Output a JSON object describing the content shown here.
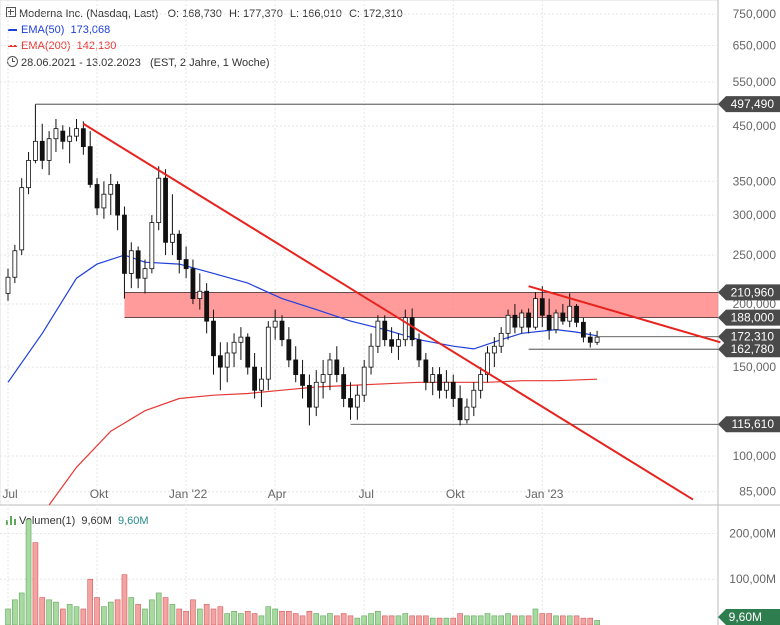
{
  "legend": {
    "instrument": "Moderna Inc. (Nasdaq, Last)",
    "ohlc": {
      "o_label": "O:",
      "o": "168,730",
      "h_label": "H:",
      "h": "177,370",
      "l_label": "L:",
      "l": "166,010",
      "c_label": "C:",
      "c": "172,310"
    },
    "ema50": {
      "label": "EMA(50)",
      "value": "173,068",
      "color": "#1f3fdb"
    },
    "ema200": {
      "label": "EMA(200)",
      "value": "142,130",
      "color": "#e53935"
    },
    "period": "28.06.2021 - 13.02.2023",
    "interval": "(EST, 2 Jahre, 1 Woche)",
    "clock_icon": "clock-icon"
  },
  "chart_data": [
    {
      "type": "candlestick",
      "yscale": "log",
      "ylim": [
        80,
        800
      ],
      "y_ticks": [
        "750,000",
        "650,000",
        "550,000",
        "450,000",
        "350,000",
        "300,000",
        "250,000",
        "200,000",
        "150,000",
        "100,000",
        "85,000"
      ],
      "y_tick_values": [
        750,
        650,
        550,
        450,
        350,
        300,
        250,
        200,
        150,
        100,
        85
      ],
      "x_ticks": [
        "Jul",
        "Okt",
        "Jan '22",
        "Apr",
        "Jul",
        "Okt",
        "Jan '23"
      ],
      "x_tick_index": [
        0,
        13,
        26,
        39,
        52,
        65,
        78
      ],
      "colors": {
        "up": "#ffffff",
        "down": "#111111",
        "ema50": "#1f3fdb",
        "ema200": "#e53935",
        "zone": "#ff8a8a",
        "trend": "#e8231e",
        "tag": "#4a4a4a"
      },
      "candles": [
        [
          210,
          235,
          203,
          226
        ],
        [
          226,
          262,
          220,
          255
        ],
        [
          256,
          355,
          250,
          340
        ],
        [
          340,
          400,
          330,
          385
        ],
        [
          385,
          497,
          380,
          420
        ],
        [
          420,
          455,
          370,
          385
        ],
        [
          385,
          440,
          360,
          425
        ],
        [
          425,
          465,
          400,
          445
        ],
        [
          440,
          452,
          405,
          420
        ],
        [
          420,
          448,
          380,
          430
        ],
        [
          430,
          465,
          420,
          445
        ],
        [
          445,
          460,
          395,
          410
        ],
        [
          410,
          440,
          340,
          345
        ],
        [
          345,
          355,
          300,
          310
        ],
        [
          310,
          350,
          295,
          330
        ],
        [
          330,
          362,
          300,
          345
        ],
        [
          345,
          350,
          280,
          300
        ],
        [
          300,
          312,
          205,
          230
        ],
        [
          230,
          265,
          215,
          255
        ],
        [
          255,
          260,
          215,
          225
        ],
        [
          225,
          245,
          210,
          235
        ],
        [
          235,
          300,
          230,
          290
        ],
        [
          290,
          375,
          280,
          355
        ],
        [
          355,
          370,
          250,
          265
        ],
        [
          265,
          330,
          250,
          275
        ],
        [
          275,
          280,
          230,
          245
        ],
        [
          245,
          260,
          225,
          235
        ],
        [
          235,
          245,
          200,
          205
        ],
        [
          205,
          230,
          195,
          212
        ],
        [
          212,
          220,
          175,
          185
        ],
        [
          185,
          195,
          145,
          158
        ],
        [
          158,
          168,
          135,
          150
        ],
        [
          150,
          168,
          140,
          160
        ],
        [
          160,
          175,
          150,
          168
        ],
        [
          168,
          180,
          155,
          172
        ],
        [
          172,
          175,
          145,
          150
        ],
        [
          150,
          160,
          130,
          135
        ],
        [
          135,
          150,
          125,
          142
        ],
        [
          142,
          185,
          135,
          180
        ],
        [
          180,
          195,
          170,
          185
        ],
        [
          185,
          190,
          165,
          170
        ],
        [
          170,
          180,
          150,
          155
        ],
        [
          155,
          165,
          140,
          145
        ],
        [
          145,
          155,
          130,
          138
        ],
        [
          138,
          145,
          115,
          125
        ],
        [
          125,
          148,
          120,
          140
        ],
        [
          140,
          155,
          130,
          145
        ],
        [
          145,
          160,
          135,
          155
        ],
        [
          155,
          165,
          140,
          145
        ],
        [
          145,
          150,
          125,
          130
        ],
        [
          130,
          140,
          118,
          125
        ],
        [
          125,
          138,
          118,
          132
        ],
        [
          132,
          155,
          128,
          150
        ],
        [
          150,
          175,
          145,
          165
        ],
        [
          165,
          190,
          160,
          185
        ],
        [
          185,
          190,
          165,
          170
        ],
        [
          170,
          180,
          160,
          165
        ],
        [
          165,
          175,
          155,
          170
        ],
        [
          170,
          195,
          165,
          188
        ],
        [
          188,
          196,
          165,
          170
        ],
        [
          170,
          175,
          150,
          155
        ],
        [
          155,
          160,
          135,
          140
        ],
        [
          140,
          150,
          132,
          145
        ],
        [
          145,
          150,
          130,
          135
        ],
        [
          135,
          148,
          130,
          140
        ],
        [
          140,
          145,
          125,
          130
        ],
        [
          130,
          138,
          115,
          118
        ],
        [
          118,
          130,
          116,
          125
        ],
        [
          125,
          140,
          120,
          135
        ],
        [
          135,
          150,
          130,
          145
        ],
        [
          145,
          165,
          140,
          160
        ],
        [
          160,
          172,
          150,
          165
        ],
        [
          165,
          180,
          160,
          175
        ],
        [
          175,
          195,
          170,
          190
        ],
        [
          190,
          200,
          175,
          180
        ],
        [
          180,
          195,
          175,
          192
        ],
        [
          192,
          196,
          175,
          180
        ],
        [
          180,
          211,
          178,
          205
        ],
        [
          205,
          217,
          180,
          190
        ],
        [
          190,
          205,
          170,
          178
        ],
        [
          178,
          195,
          175,
          192
        ],
        [
          192,
          200,
          182,
          185
        ],
        [
          185,
          210,
          180,
          198
        ],
        [
          198,
          200,
          180,
          184
        ],
        [
          184,
          188,
          168,
          172
        ],
        [
          172,
          176,
          164,
          168
        ],
        [
          168,
          177,
          166,
          172
        ]
      ],
      "ema50": [
        [
          0,
          140
        ],
        [
          5,
          175
        ],
        [
          10,
          225
        ],
        [
          13,
          240
        ],
        [
          17,
          250
        ],
        [
          20,
          242
        ],
        [
          25,
          240
        ],
        [
          30,
          230
        ],
        [
          35,
          220
        ],
        [
          40,
          205
        ],
        [
          45,
          195
        ],
        [
          50,
          185
        ],
        [
          55,
          178
        ],
        [
          60,
          170
        ],
        [
          65,
          165
        ],
        [
          68,
          163
        ],
        [
          72,
          170
        ],
        [
          75,
          175
        ],
        [
          80,
          178
        ],
        [
          83,
          176
        ],
        [
          86,
          173
        ]
      ],
      "ema200": [
        [
          6,
          80
        ],
        [
          10,
          95
        ],
        [
          15,
          112
        ],
        [
          20,
          123
        ],
        [
          25,
          130
        ],
        [
          30,
          132
        ],
        [
          35,
          133
        ],
        [
          40,
          135
        ],
        [
          45,
          137
        ],
        [
          50,
          138
        ],
        [
          55,
          139
        ],
        [
          60,
          140
        ],
        [
          65,
          140
        ],
        [
          70,
          140
        ],
        [
          75,
          141
        ],
        [
          80,
          141
        ],
        [
          86,
          142
        ]
      ],
      "resistance_zone": {
        "low": 188,
        "high": 211,
        "from": 17,
        "to": 104
      },
      "levels": [
        {
          "value": 497.49,
          "label": "497,490",
          "from": 4
        },
        {
          "value": 210.96,
          "label": "210,960",
          "from": 17
        },
        {
          "value": 188.0,
          "label": "188,000",
          "from": 17
        },
        {
          "value": 172.31,
          "label": "172,310",
          "from": 86
        },
        {
          "value": 162.78,
          "label": "162,780",
          "from": 76
        },
        {
          "value": 115.61,
          "label": "115,610",
          "from": 50
        }
      ],
      "trendlines": [
        {
          "from": [
            11,
            455
          ],
          "to": [
            100,
            82
          ]
        },
        {
          "from": [
            76,
            217
          ],
          "to": [
            104,
            168
          ]
        }
      ]
    },
    {
      "type": "bar",
      "title": "Volumen(1)",
      "title_value": "9,60M",
      "title_value_2": "9,60M",
      "ylim": [
        0,
        260
      ],
      "y_ticks": [
        "200,00M",
        "100,00M"
      ],
      "y_tick_values": [
        200,
        100
      ],
      "last_label": "9,60M",
      "values": [
        [
          35,
          1
        ],
        [
          55,
          1
        ],
        [
          70,
          1
        ],
        [
          230,
          1
        ],
        [
          180,
          0
        ],
        [
          60,
          0
        ],
        [
          55,
          1
        ],
        [
          50,
          1
        ],
        [
          35,
          0
        ],
        [
          45,
          1
        ],
        [
          40,
          1
        ],
        [
          35,
          0
        ],
        [
          100,
          0
        ],
        [
          60,
          0
        ],
        [
          40,
          1
        ],
        [
          50,
          1
        ],
        [
          55,
          0
        ],
        [
          110,
          0
        ],
        [
          60,
          1
        ],
        [
          45,
          0
        ],
        [
          35,
          1
        ],
        [
          55,
          1
        ],
        [
          70,
          1
        ],
        [
          60,
          0
        ],
        [
          45,
          1
        ],
        [
          35,
          0
        ],
        [
          30,
          0
        ],
        [
          55,
          0
        ],
        [
          35,
          1
        ],
        [
          45,
          0
        ],
        [
          35,
          0
        ],
        [
          40,
          0
        ],
        [
          25,
          1
        ],
        [
          30,
          1
        ],
        [
          25,
          1
        ],
        [
          30,
          0
        ],
        [
          25,
          0
        ],
        [
          20,
          1
        ],
        [
          40,
          1
        ],
        [
          35,
          1
        ],
        [
          30,
          0
        ],
        [
          30,
          0
        ],
        [
          25,
          0
        ],
        [
          20,
          0
        ],
        [
          30,
          0
        ],
        [
          25,
          1
        ],
        [
          20,
          1
        ],
        [
          25,
          1
        ],
        [
          20,
          0
        ],
        [
          25,
          0
        ],
        [
          20,
          0
        ],
        [
          15,
          1
        ],
        [
          20,
          1
        ],
        [
          25,
          1
        ],
        [
          30,
          1
        ],
        [
          20,
          0
        ],
        [
          20,
          0
        ],
        [
          20,
          1
        ],
        [
          25,
          1
        ],
        [
          20,
          0
        ],
        [
          20,
          0
        ],
        [
          20,
          0
        ],
        [
          15,
          1
        ],
        [
          15,
          0
        ],
        [
          15,
          1
        ],
        [
          15,
          0
        ],
        [
          25,
          0
        ],
        [
          20,
          1
        ],
        [
          20,
          1
        ],
        [
          20,
          1
        ],
        [
          25,
          1
        ],
        [
          20,
          1
        ],
        [
          20,
          1
        ],
        [
          25,
          1
        ],
        [
          20,
          0
        ],
        [
          20,
          1
        ],
        [
          20,
          0
        ],
        [
          35,
          1
        ],
        [
          25,
          0
        ],
        [
          25,
          0
        ],
        [
          20,
          1
        ],
        [
          20,
          0
        ],
        [
          20,
          1
        ],
        [
          20,
          0
        ],
        [
          15,
          0
        ],
        [
          15,
          0
        ],
        [
          10,
          1
        ]
      ],
      "colors": {
        "up": "#a7d9a0",
        "up_border": "#5fa85a",
        "down": "#f4a3a3",
        "down_border": "#d35b5b"
      }
    }
  ]
}
